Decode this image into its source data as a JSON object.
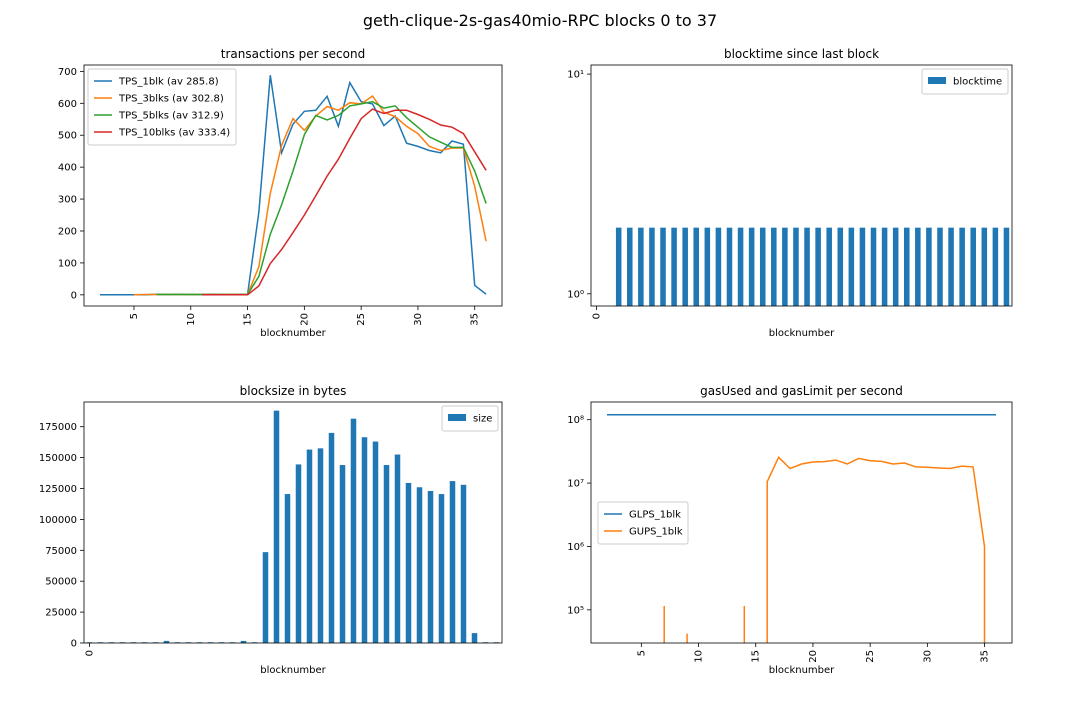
{
  "figure_title": "geth-clique-2s-gas40mio-RPC blocks 0 to 37",
  "colors": {
    "blue": "#1f77b4",
    "orange": "#ff7f0e",
    "green": "#2ca02c",
    "red": "#d62728",
    "axis": "#000000",
    "legend_border": "#cccccc"
  },
  "chart_data": [
    {
      "type": "line",
      "title": "transactions per second",
      "xlabel": "blocknumber",
      "ylabel": "",
      "xlim": [
        0.6,
        37.4
      ],
      "ylim": [
        -35,
        720
      ],
      "xticks": [
        5,
        10,
        15,
        20,
        25,
        30,
        35
      ],
      "yticks": [
        0,
        100,
        200,
        300,
        400,
        500,
        600,
        700
      ],
      "xtick_rotation": 90,
      "legend_position": "upper left",
      "x": [
        2,
        3,
        4,
        5,
        6,
        7,
        8,
        9,
        10,
        11,
        12,
        13,
        14,
        15,
        16,
        17,
        18,
        19,
        20,
        21,
        22,
        23,
        24,
        25,
        26,
        27,
        28,
        29,
        30,
        31,
        32,
        33,
        34,
        35,
        36
      ],
      "series": [
        {
          "name": "TPS_1blk (av 285.8)",
          "color": "blue",
          "values": [
            0,
            0,
            0,
            0,
            0,
            2,
            1,
            2,
            1,
            1,
            2,
            1,
            1,
            2,
            260,
            688,
            445,
            535,
            575,
            578,
            622,
            528,
            665,
            605,
            598,
            530,
            560,
            475,
            465,
            452,
            445,
            482,
            472,
            30,
            2
          ]
        },
        {
          "name": "TPS_3blks (av 302.8)",
          "color": "orange",
          "values": [
            null,
            null,
            null,
            0,
            1,
            1,
            1,
            1,
            1,
            1,
            1,
            1,
            1,
            1,
            88,
            318,
            468,
            552,
            515,
            560,
            590,
            578,
            602,
            598,
            623,
            572,
            558,
            528,
            505,
            465,
            452,
            460,
            460,
            340,
            168
          ]
        },
        {
          "name": "TPS_5blks (av 312.9)",
          "color": "green",
          "values": [
            null,
            null,
            null,
            null,
            null,
            1,
            1,
            1,
            1,
            1,
            1,
            1,
            1,
            1,
            58,
            190,
            282,
            388,
            502,
            562,
            548,
            562,
            592,
            598,
            605,
            585,
            592,
            555,
            525,
            495,
            478,
            462,
            462,
            388,
            286
          ]
        },
        {
          "name": "TPS_10blks (av 333.4)",
          "color": "red",
          "values": [
            null,
            null,
            null,
            null,
            null,
            null,
            null,
            null,
            null,
            0,
            0,
            0,
            0,
            0,
            28,
            98,
            142,
            195,
            250,
            310,
            372,
            425,
            490,
            552,
            582,
            568,
            578,
            578,
            565,
            550,
            532,
            525,
            505,
            448,
            390
          ]
        }
      ]
    },
    {
      "type": "bar",
      "title": "blocktime since last block",
      "xlabel": "blocknumber",
      "ylabel": "",
      "yscale": "log",
      "ylim": [
        0.88,
        11
      ],
      "ytick_labels": [
        "10⁰",
        "10¹"
      ],
      "ytick_values": [
        1,
        10
      ],
      "xtick_labels": [
        "0"
      ],
      "xtick_rotation": 90,
      "legend_position": "upper right",
      "categories": [
        0,
        1,
        2,
        3,
        4,
        5,
        6,
        7,
        8,
        9,
        10,
        11,
        12,
        13,
        14,
        15,
        16,
        17,
        18,
        19,
        20,
        21,
        22,
        23,
        24,
        25,
        26,
        27,
        28,
        29,
        30,
        31,
        32,
        33,
        34,
        35,
        36,
        37
      ],
      "series": [
        {
          "name": "blocktime",
          "color": "blue",
          "values": [
            null,
            null,
            2,
            2,
            2,
            2,
            2,
            2,
            2,
            2,
            2,
            2,
            2,
            2,
            2,
            2,
            2,
            2,
            2,
            2,
            2,
            2,
            2,
            2,
            2,
            2,
            2,
            2,
            2,
            2,
            2,
            2,
            2,
            2,
            2,
            2,
            2,
            2
          ]
        }
      ]
    },
    {
      "type": "bar",
      "title": "blocksize in bytes",
      "xlabel": "blocknumber",
      "ylabel": "",
      "ylim": [
        0,
        195000
      ],
      "yticks": [
        0,
        25000,
        50000,
        75000,
        100000,
        125000,
        150000,
        175000
      ],
      "xtick_labels": [
        "0"
      ],
      "xtick_rotation": 90,
      "legend_position": "upper right",
      "categories": [
        0,
        1,
        2,
        3,
        4,
        5,
        6,
        7,
        8,
        9,
        10,
        11,
        12,
        13,
        14,
        15,
        16,
        17,
        18,
        19,
        20,
        21,
        22,
        23,
        24,
        25,
        26,
        27,
        28,
        29,
        30,
        31,
        32,
        33,
        34,
        35,
        36,
        37
      ],
      "series": [
        {
          "name": "size",
          "color": "blue",
          "values": [
            600,
            600,
            600,
            600,
            600,
            600,
            600,
            1700,
            600,
            600,
            600,
            600,
            600,
            600,
            1700,
            600,
            73500,
            188000,
            120500,
            144500,
            156500,
            157500,
            170000,
            144000,
            181500,
            166500,
            163000,
            144000,
            152500,
            129500,
            126000,
            123000,
            120500,
            131000,
            128000,
            8000,
            600,
            600
          ]
        }
      ]
    },
    {
      "type": "line",
      "title": "gasUsed and gasLimit per second",
      "xlabel": "blocknumber",
      "ylabel": "",
      "yscale": "log",
      "xlim": [
        0.6,
        37.4
      ],
      "ylim": [
        30000,
        190000000
      ],
      "ytick_labels": [
        "10⁵",
        "10⁶",
        "10⁷",
        "10⁸"
      ],
      "ytick_values": [
        100000,
        1000000,
        10000000,
        100000000
      ],
      "xticks": [
        5,
        10,
        15,
        20,
        25,
        30,
        35
      ],
      "xtick_rotation": 90,
      "legend_position": "center left",
      "series": [
        {
          "name": "GLPS_1blk",
          "color": "blue",
          "x": [
            2,
            36
          ],
          "values": [
            120000000,
            120000000
          ]
        },
        {
          "name": "GUPS_1blk",
          "color": "orange",
          "x": [
            7,
            7,
            7,
            9,
            9,
            9,
            14,
            14,
            14,
            16,
            16,
            17,
            18,
            19,
            20,
            21,
            22,
            23,
            24,
            25,
            26,
            27,
            28,
            29,
            30,
            31,
            32,
            33,
            34,
            35,
            35
          ],
          "values": [
            1000,
            115000,
            1000,
            1000,
            42000,
            1000,
            1000,
            115000,
            1000,
            1000,
            10500000,
            25500000,
            17000000,
            20000000,
            21500000,
            21800000,
            23000000,
            20000000,
            24500000,
            22500000,
            22000000,
            20000000,
            20700000,
            18000000,
            17700000,
            17300000,
            17000000,
            18500000,
            18000000,
            1000000,
            1000
          ]
        }
      ]
    }
  ]
}
